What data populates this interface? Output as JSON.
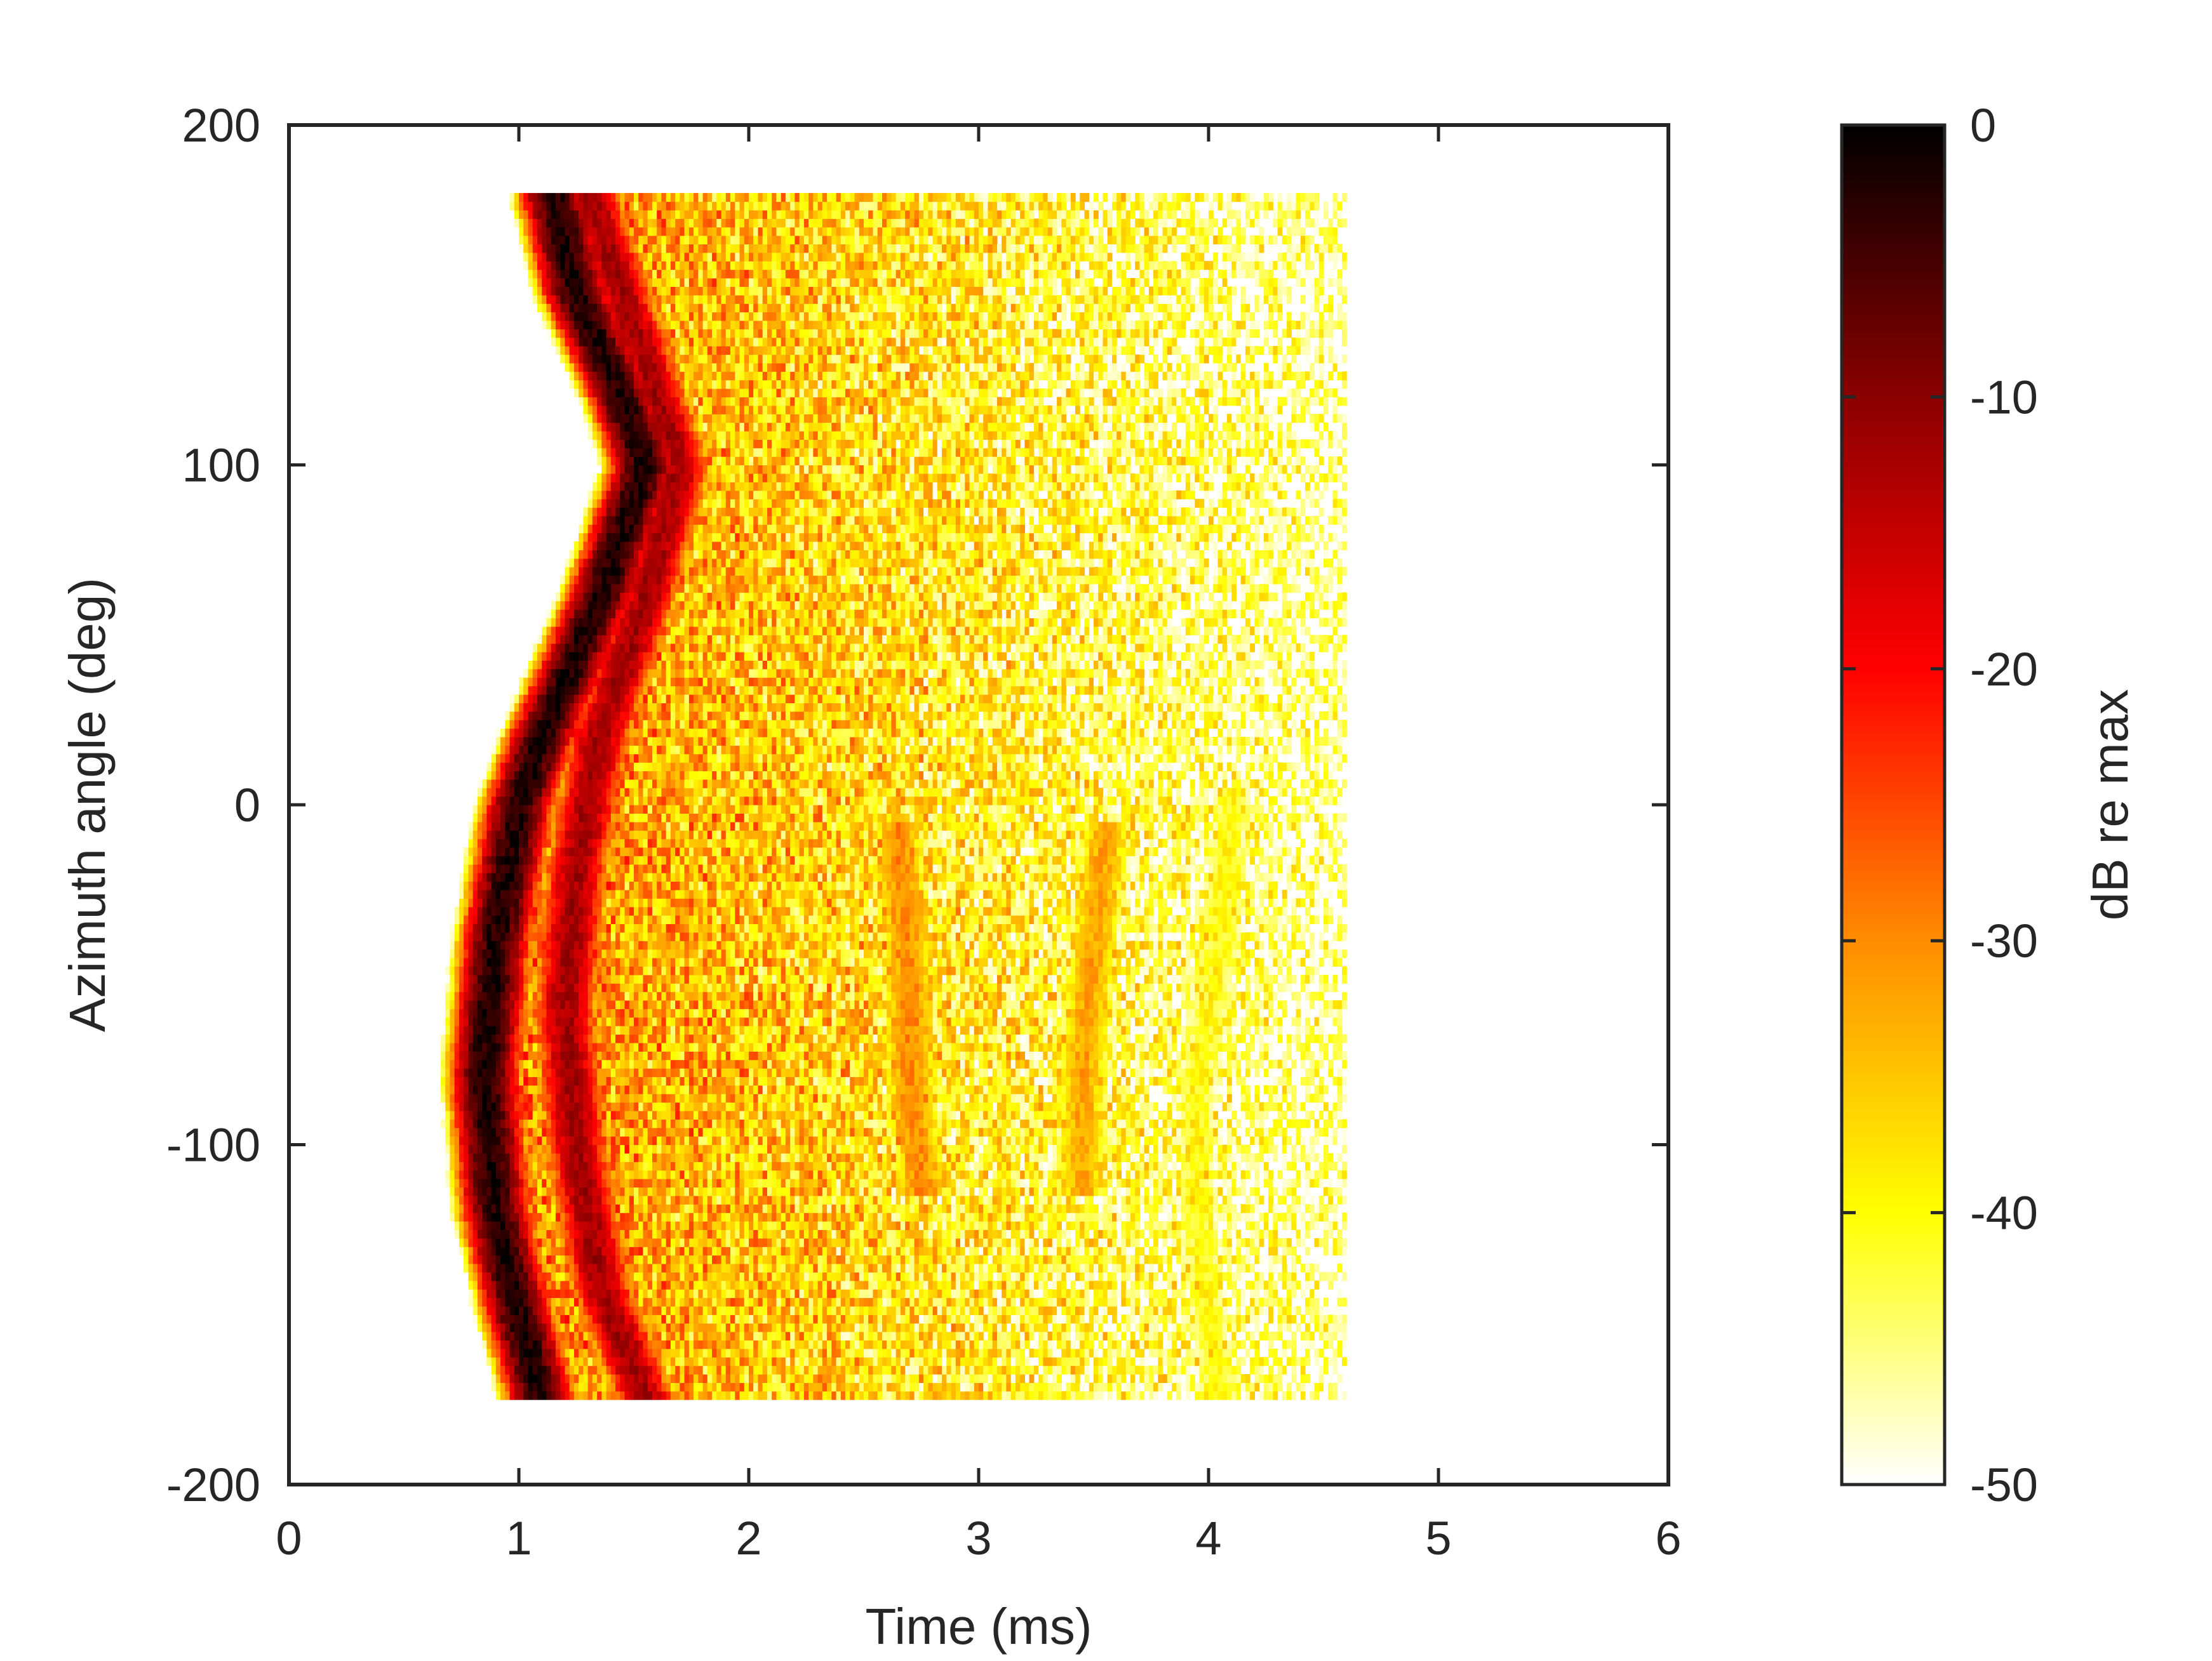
{
  "chart_data": {
    "type": "heatmap",
    "title": "",
    "xlabel": "Time (ms)",
    "ylabel": "Azimuth angle (deg)",
    "xlim": [
      0,
      6
    ],
    "ylim": [
      -200,
      200
    ],
    "xticks": [
      0,
      1,
      2,
      3,
      4,
      5,
      6
    ],
    "yticks": [
      200,
      100,
      0,
      -100,
      -200
    ],
    "x_tick_labels": [
      "0",
      "1",
      "2",
      "3",
      "4",
      "5",
      "6"
    ],
    "y_tick_labels": [
      "200",
      "100",
      "0",
      "-100",
      "-200"
    ],
    "grid": false,
    "data_extent": {
      "azimuth_range_deg": [
        -175,
        180
      ],
      "time_range_ms": [
        0.5,
        4.6
      ]
    },
    "value_description": "Energy versus arrival time and source azimuth; level in dB relative to maximum, values below -50 dB not shown",
    "features": [
      {
        "name": "direct arrival ridge",
        "level_db": -2,
        "points": [
          {
            "azimuth": 180,
            "time": 1.15
          },
          {
            "azimuth": 150,
            "time": 1.25
          },
          {
            "azimuth": 120,
            "time": 1.45
          },
          {
            "azimuth": 100,
            "time": 1.55
          },
          {
            "azimuth": 60,
            "time": 1.35
          },
          {
            "azimuth": 20,
            "time": 1.1
          },
          {
            "azimuth": 0,
            "time": 1.0
          },
          {
            "azimuth": -40,
            "time": 0.9
          },
          {
            "azimuth": -80,
            "time": 0.85
          },
          {
            "azimuth": -120,
            "time": 0.9
          },
          {
            "azimuth": -150,
            "time": 1.0
          },
          {
            "azimuth": -175,
            "time": 1.1
          }
        ]
      },
      {
        "name": "second arrival ridge",
        "level_db": -12,
        "points": [
          {
            "azimuth": 180,
            "time": 1.3
          },
          {
            "azimuth": 150,
            "time": 1.45
          },
          {
            "azimuth": 120,
            "time": 1.6
          },
          {
            "azimuth": 100,
            "time": 1.7
          },
          {
            "azimuth": 60,
            "time": 1.55
          },
          {
            "azimuth": 20,
            "time": 1.35
          },
          {
            "azimuth": -20,
            "time": 1.25
          },
          {
            "azimuth": -60,
            "time": 1.2
          },
          {
            "azimuth": -100,
            "time": 1.25
          },
          {
            "azimuth": -140,
            "time": 1.35
          },
          {
            "azimuth": -175,
            "time": 1.55
          }
        ]
      },
      {
        "name": "reflection near 2.7 ms",
        "level_db": -30,
        "points": [
          {
            "azimuth": -10,
            "time": 2.65
          },
          {
            "azimuth": -50,
            "time": 2.7
          },
          {
            "azimuth": -80,
            "time": 2.7
          },
          {
            "azimuth": -110,
            "time": 2.75
          }
        ]
      },
      {
        "name": "reflection near 3.5 ms",
        "level_db": -32,
        "points": [
          {
            "azimuth": -10,
            "time": 3.55
          },
          {
            "azimuth": -40,
            "time": 3.5
          },
          {
            "azimuth": -80,
            "time": 3.45
          },
          {
            "azimuth": -110,
            "time": 3.45
          }
        ]
      },
      {
        "name": "reflection near 4.1 ms",
        "level_db": -40,
        "points": [
          {
            "azimuth": 0,
            "time": 4.1
          },
          {
            "azimuth": -40,
            "time": 4.05
          },
          {
            "azimuth": -80,
            "time": 3.95
          },
          {
            "azimuth": -120,
            "time": 3.95
          },
          {
            "azimuth": -175,
            "time": 4.05
          }
        ]
      },
      {
        "name": "late reflections near 180 deg",
        "level_db": -45,
        "points": [
          {
            "azimuth": 180,
            "time": 2.3
          },
          {
            "azimuth": 150,
            "time": 2.45
          },
          {
            "azimuth": 180,
            "time": 3.0
          },
          {
            "azimuth": 180,
            "time": 3.85
          }
        ]
      }
    ],
    "colorbar": {
      "label": "dB re max",
      "range": [
        -50,
        0
      ],
      "ticks": [
        0,
        -10,
        -20,
        -30,
        -40,
        -50
      ],
      "tick_labels": [
        "0",
        "-10",
        "-20",
        "-30",
        "-40",
        "-50"
      ],
      "colormap": "hot (reversed)",
      "color_stops": [
        {
          "value": 0,
          "color": "#000000"
        },
        {
          "value": -10,
          "color": "#8b0000"
        },
        {
          "value": -20,
          "color": "#ff0000"
        },
        {
          "value": -30,
          "color": "#ff8c00"
        },
        {
          "value": -40,
          "color": "#ffff00"
        },
        {
          "value": -50,
          "color": "#ffffff"
        }
      ]
    }
  }
}
